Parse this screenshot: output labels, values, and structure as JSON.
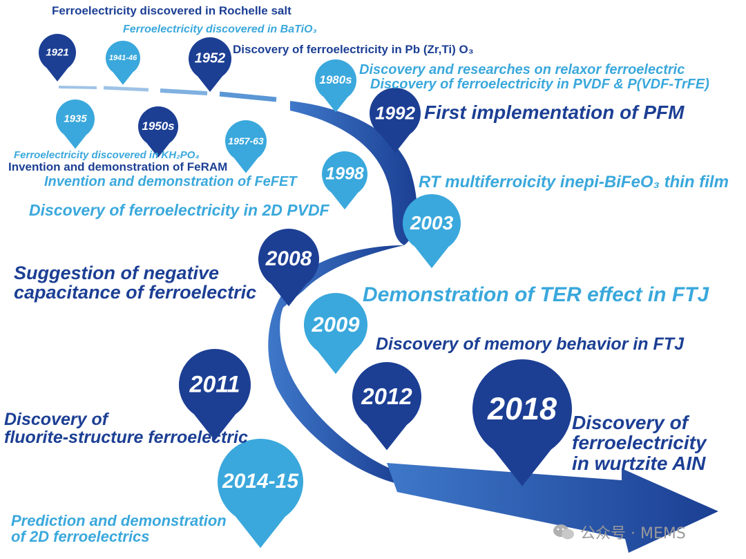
{
  "milestones": [
    {
      "year": "1921",
      "label": "Ferroelectricity discovered in Rochelle salt",
      "shade": "dark"
    },
    {
      "year": "1935",
      "label": "Ferroelectricity discovered in KH₂PO₄",
      "shade": "light"
    },
    {
      "year": "1941-46",
      "label": "Ferroelectricity discovered in BaTiO₃",
      "shade": "light"
    },
    {
      "year": "1950s",
      "label": "Invention and demonstration of FeRAM",
      "shade": "dark"
    },
    {
      "year": "1952",
      "label": "Discovery of ferroelectricity in Pb (Zr,Ti) O₃",
      "shade": "dark"
    },
    {
      "year": "1957-63",
      "label": "Invention and demonstration of FeFET",
      "shade": "light"
    },
    {
      "year": "1980s",
      "label": "Discovery and researches on relaxor ferroelectric",
      "label2": "Discovery of ferroelectricity in PVDF & P(VDF-TrFE)",
      "shade": "light"
    },
    {
      "year": "1992",
      "label": "First implementation of PFM",
      "shade": "dark"
    },
    {
      "year": "1998",
      "label": "Discovery of ferroelectricity in 2D PVDF",
      "shade": "light"
    },
    {
      "year": "2003",
      "label": "RT multiferroicity inepi-BiFeO₃ thin film",
      "shade": "light"
    },
    {
      "year": "2008",
      "label": "Suggestion of negative capacitance of ferroelectric",
      "shade": "dark"
    },
    {
      "year": "2009",
      "label": "Demonstration of TER effect in FTJ",
      "shade": "light"
    },
    {
      "year": "2011",
      "label": "Discovery of fluorite-structure ferroelectric",
      "shade": "dark"
    },
    {
      "year": "2012",
      "label": "Discovery of memory behavior in FTJ",
      "shade": "dark"
    },
    {
      "year": "2014-15",
      "label": "Prediction and demonstration of 2D ferroelectrics",
      "shade": "light"
    },
    {
      "year": "2018",
      "label": "Discovery of ferroelectricity in wurtzite AIN",
      "shade": "dark"
    }
  ],
  "watermark": "公众号 · MEMS",
  "colors": {
    "dark": "#1c3f94",
    "light": "#3aa8dc",
    "arrow": "#1f4fa8"
  }
}
